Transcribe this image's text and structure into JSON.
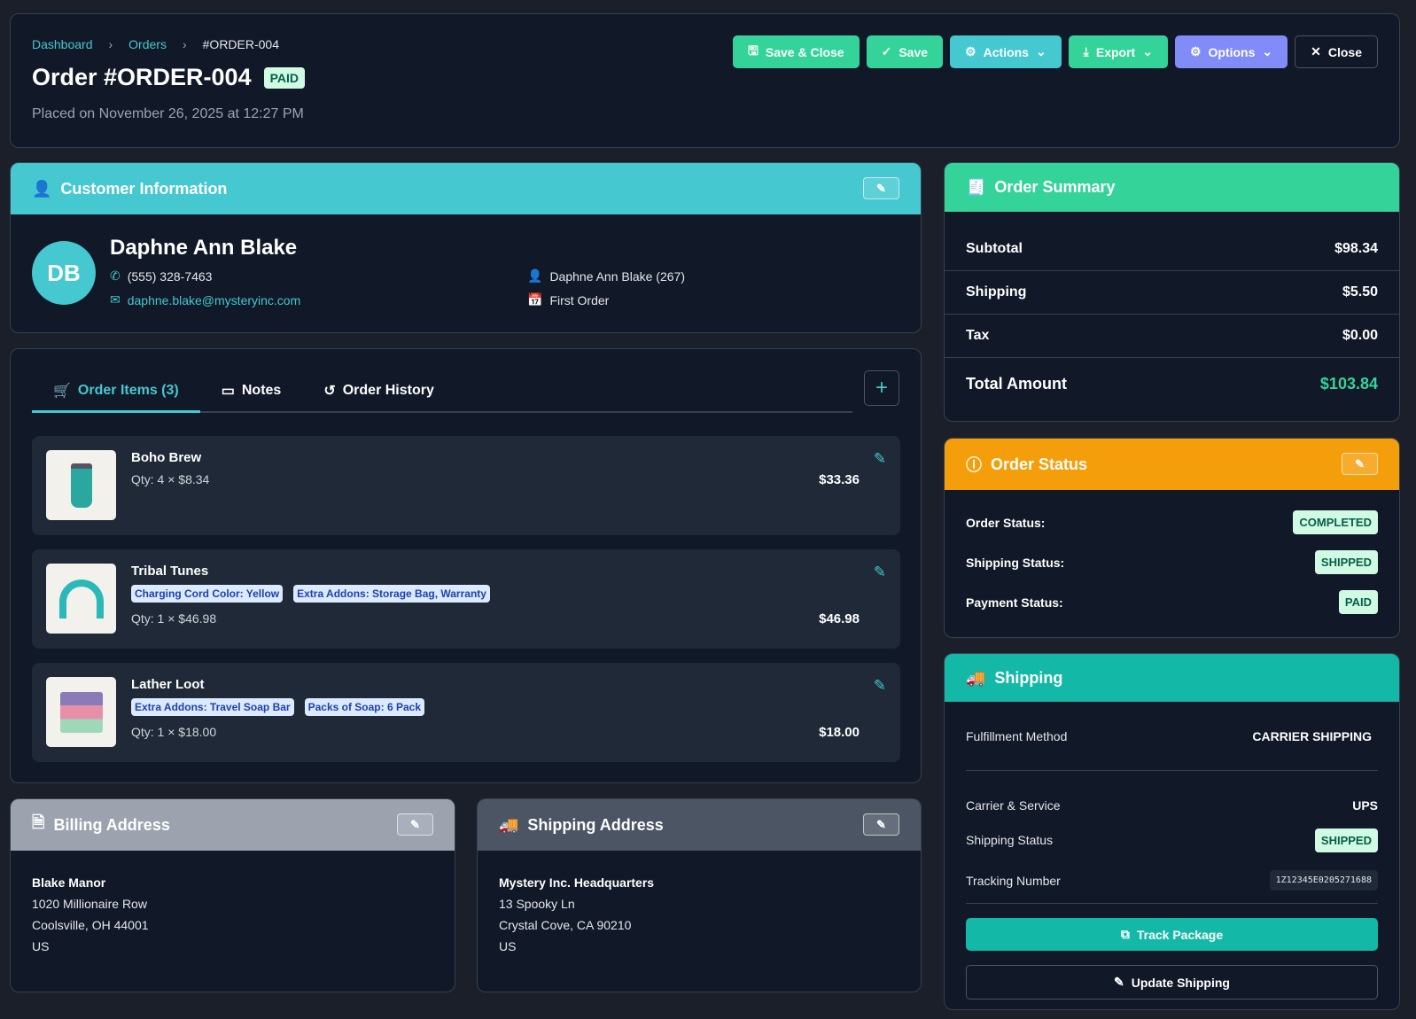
{
  "breadcrumb": [
    "Dashboard",
    "Orders",
    "#ORDER-004"
  ],
  "header": {
    "title": "Order #ORDER-004",
    "badge": "PAID",
    "placed": "Placed on November 26, 2025 at 12:27 PM"
  },
  "toolbar": {
    "save_close": "Save & Close",
    "save": "Save",
    "actions": "Actions",
    "export": "Export",
    "options": "Options",
    "close": "Close"
  },
  "customer": {
    "section_title": "Customer Information",
    "initials": "DB",
    "name": "Daphne Ann Blake",
    "phone": "(555) 328-7463",
    "email": "daphne.blake@mysteryinc.com",
    "account": "Daphne Ann Blake (267)",
    "order_type": "First Order"
  },
  "tabs": [
    {
      "label": "Order Items (3)",
      "active": true
    },
    {
      "label": "Notes"
    },
    {
      "label": "Order History"
    }
  ],
  "items": [
    {
      "name": "Boho Brew",
      "qty": "Qty: 4 × $8.34",
      "total": "$33.36",
      "options": []
    },
    {
      "name": "Tribal Tunes",
      "qty": "Qty: 1 × $46.98",
      "total": "$46.98",
      "options": [
        "Charging Cord Color: Yellow",
        "Extra Addons: Storage Bag, Warranty"
      ]
    },
    {
      "name": "Lather Loot",
      "qty": "Qty: 1 × $18.00",
      "total": "$18.00",
      "options": [
        "Extra Addons: Travel Soap Bar",
        "Packs of Soap: 6 Pack"
      ]
    }
  ],
  "billing": {
    "title": "Billing Address",
    "name": "Blake Manor",
    "line1": "1020 Millionaire Row",
    "line2": "Coolsville, OH 44001",
    "country": "US"
  },
  "shipping_address": {
    "title": "Shipping Address",
    "name": "Mystery Inc. Headquarters",
    "line1": "13 Spooky Ln",
    "line2": "Crystal Cove, CA 90210",
    "country": "US"
  },
  "summary": {
    "title": "Order Summary",
    "rows": [
      {
        "label": "Subtotal",
        "value": "$98.34"
      },
      {
        "label": "Shipping",
        "value": "$5.50"
      },
      {
        "label": "Tax",
        "value": "$0.00"
      }
    ],
    "total_label": "Total Amount",
    "total": "$103.84"
  },
  "status": {
    "title": "Order Status",
    "rows": [
      {
        "label": "Order Status:",
        "value": "COMPLETED"
      },
      {
        "label": "Shipping Status:",
        "value": "SHIPPED"
      },
      {
        "label": "Payment Status:",
        "value": "PAID"
      }
    ]
  },
  "shipping": {
    "title": "Shipping",
    "fulfillment_label": "Fulfillment Method",
    "fulfillment": "CARRIER SHIPPING",
    "carrier_label": "Carrier & Service",
    "carrier": "UPS",
    "status_label": "Shipping Status",
    "status": "SHIPPED",
    "tracking_label": "Tracking Number",
    "tracking": "1Z12345E0205271688",
    "track_btn": "Track Package",
    "update_btn": "Update Shipping"
  },
  "colors": {
    "cyan": "#45c8d0",
    "green": "#34d399",
    "amber": "#f59e0b",
    "teal": "#14b8a6",
    "indigo": "#818cf8"
  }
}
